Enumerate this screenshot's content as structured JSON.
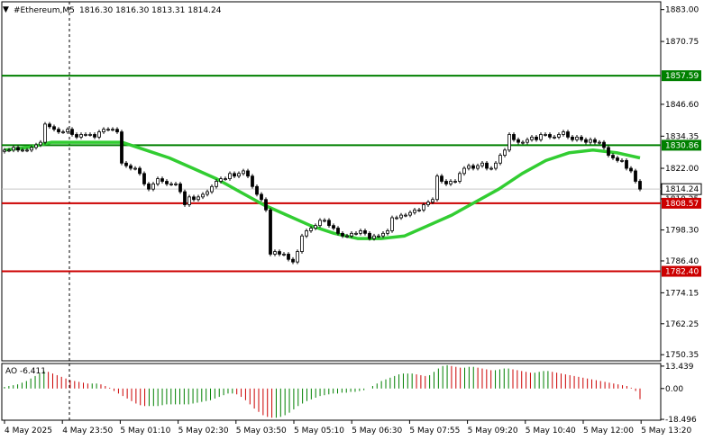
{
  "header": {
    "symbol": "#Ethereum,M5",
    "ohlc": "1816.30 1816.30 1813.31 1814.24"
  },
  "colors": {
    "bull": "#000000",
    "bear": "#000000",
    "ma": "#32cd32",
    "resistance": "#008000",
    "support": "#cc0000",
    "ao_up": "#008000",
    "ao_down": "#cc0000",
    "grid": "#c8c8c8"
  },
  "chart_data": [
    {
      "type": "candlestick",
      "title": "",
      "ylim": [
        1748,
        1886
      ],
      "y_ticks": [
        "1883.00",
        "1870.75",
        "1846.60",
        "1834.35",
        "1822.00",
        "1810.25",
        "1798.30",
        "1786.40",
        "1774.15",
        "1762.25",
        "1750.35"
      ],
      "x_ticks": [
        "4 May 2025",
        "4 May 23:50",
        "5 May 01:10",
        "5 May 02:30",
        "5 May 03:50",
        "5 May 05:10",
        "5 May 06:30",
        "5 May 07:55",
        "5 May 09:20",
        "5 May 10:40",
        "5 May 12:00",
        "5 May 13:20"
      ],
      "grid": true,
      "price_label": "1814.24",
      "levels": [
        {
          "value": 1857.59,
          "label": "1857.59",
          "kind": "resistance"
        },
        {
          "value": 1830.86,
          "label": "1830.86",
          "kind": "resistance"
        },
        {
          "value": 1808.57,
          "label": "1808.57",
          "kind": "support"
        },
        {
          "value": 1782.4,
          "label": "1782.40",
          "kind": "support"
        }
      ],
      "close": [
        1829,
        1829,
        1830,
        1829,
        1829,
        1829,
        1830,
        1831,
        1832,
        1839,
        1838,
        1837,
        1836,
        1836,
        1837,
        1835,
        1834,
        1835,
        1835,
        1835,
        1834,
        1836,
        1837,
        1837,
        1837,
        1836,
        1824,
        1823,
        1822,
        1822,
        1820,
        1816,
        1814,
        1816,
        1818,
        1817,
        1816,
        1816,
        1816,
        1813,
        1808,
        1811,
        1810,
        1811,
        1812,
        1813,
        1815,
        1817,
        1818,
        1818,
        1820,
        1819,
        1820,
        1821,
        1819,
        1815,
        1812,
        1810,
        1806,
        1789,
        1790,
        1789,
        1789,
        1787,
        1786,
        1790,
        1796,
        1798,
        1799,
        1800,
        1802,
        1802,
        1800,
        1799,
        1797,
        1796,
        1796,
        1797,
        1797,
        1798,
        1797,
        1795,
        1796,
        1796,
        1797,
        1798,
        1803,
        1803,
        1804,
        1804,
        1805,
        1806,
        1806,
        1808,
        1809,
        1810,
        1819,
        1817,
        1816,
        1817,
        1817,
        1820,
        1822,
        1823,
        1822,
        1823,
        1824,
        1822,
        1822,
        1824,
        1827,
        1829,
        1835,
        1833,
        1832,
        1832,
        1833,
        1834,
        1833,
        1835,
        1835,
        1834,
        1834,
        1835,
        1836,
        1834,
        1833,
        1834,
        1833,
        1832,
        1833,
        1832,
        1832,
        1830,
        1827,
        1826,
        1825,
        1825,
        1822,
        1821,
        1817,
        1814
      ],
      "ma": [
        1829,
        1830,
        1832,
        1832,
        1832,
        1832,
        1829,
        1826,
        1822,
        1818,
        1813,
        1808,
        1804,
        1800,
        1797,
        1795,
        1795,
        1796,
        1800,
        1804,
        1809,
        1814,
        1820,
        1825,
        1828,
        1829,
        1828,
        1826
      ]
    },
    {
      "type": "bar",
      "title": "AO -6.411",
      "ylim": [
        -19,
        15
      ],
      "y_ticks": [
        "13.439",
        "0.00",
        "-18.496"
      ],
      "values": [
        1.0,
        1.5,
        2.0,
        2.5,
        3.5,
        4.5,
        6.0,
        7.5,
        9.0,
        10.5,
        10.0,
        9.0,
        8.0,
        7.0,
        6.0,
        5.0,
        4.5,
        4.0,
        3.5,
        3.0,
        3.0,
        3.0,
        2.5,
        1.5,
        0.5,
        -1.5,
        -3.0,
        -4.5,
        -6.0,
        -7.5,
        -9.0,
        -10.0,
        -10.5,
        -10.5,
        -10.5,
        -10.5,
        -10.0,
        -9.5,
        -9.5,
        -9.5,
        -9.5,
        -9.5,
        -9.5,
        -9.0,
        -8.5,
        -8.0,
        -7.5,
        -7.0,
        -6.0,
        -5.0,
        -4.0,
        -3.0,
        -3.0,
        -3.5,
        -5.0,
        -7.0,
        -9.5,
        -12.0,
        -14.0,
        -16.0,
        -17.0,
        -17.5,
        -17.5,
        -17.0,
        -16.0,
        -14.5,
        -12.5,
        -10.5,
        -9.0,
        -7.5,
        -6.5,
        -5.5,
        -4.5,
        -4.0,
        -3.5,
        -3.0,
        -3.0,
        -2.5,
        -2.5,
        -2.0,
        -2.0,
        -1.5,
        -1.0,
        0.0,
        1.5,
        3.0,
        4.5,
        5.5,
        6.5,
        7.5,
        8.5,
        9.0,
        9.0,
        9.0,
        8.5,
        8.0,
        7.5,
        8.0,
        10.0,
        12.0,
        13.5,
        14.0,
        13.5,
        13.0,
        12.5,
        12.5,
        13.0,
        13.0,
        12.5,
        12.0,
        11.5,
        11.0,
        11.0,
        11.5,
        12.0,
        12.0,
        11.5,
        11.0,
        10.5,
        10.0,
        9.5,
        9.5,
        10.0,
        10.5,
        10.5,
        10.0,
        9.5,
        9.0,
        8.5,
        8.0,
        7.5,
        7.0,
        6.5,
        6.0,
        5.5,
        5.0,
        4.5,
        4.0,
        3.5,
        3.0,
        2.5,
        2.0,
        1.5,
        0.5,
        -1.5,
        -6.4
      ]
    }
  ]
}
